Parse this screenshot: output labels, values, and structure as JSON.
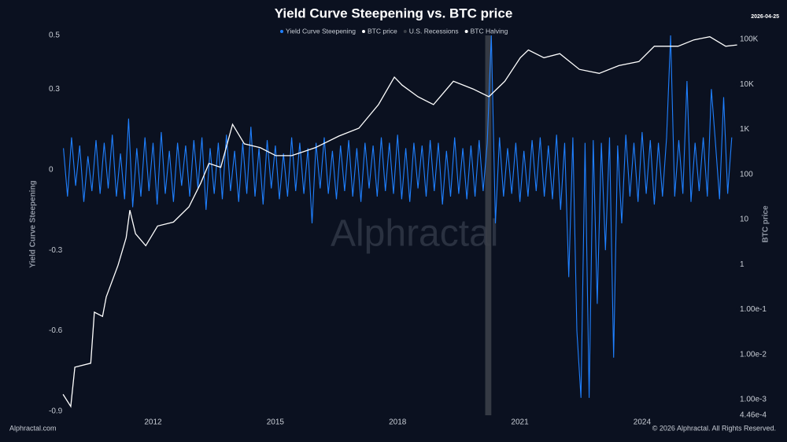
{
  "chart_data": {
    "type": "line",
    "title": "Yield Curve Steepening vs. BTC price",
    "date_stamp": "2026-04-25",
    "watermark": "Alphractal",
    "footer_left": "Alphractal.com",
    "footer_right": "© 2026 Alphractal. All Rights Reserved.",
    "ylabel": "Yield Curve Steepening",
    "y2label": "BTC price",
    "xlim": [
      2009.75,
      2026.3
    ],
    "xticks": [
      2012,
      2015,
      2018,
      2021,
      2024
    ],
    "ylim": [
      -0.9,
      0.5
    ],
    "yticks": [
      -0.9,
      -0.6,
      -0.3,
      0,
      0.3,
      0.5
    ],
    "y2lim": [
      0.000446,
      122000
    ],
    "y2log": true,
    "y2ticks": [
      {
        "value": 0.000446,
        "label": "4.46e-4"
      },
      {
        "value": 0.001,
        "label": "1.00e-3"
      },
      {
        "value": 0.01,
        "label": "1.00e-2"
      },
      {
        "value": 0.1,
        "label": "1.00e-1"
      },
      1,
      10,
      100,
      {
        "value": 1000,
        "label": "1K"
      },
      {
        "value": 10000,
        "label": "10K"
      },
      {
        "value": 100000,
        "label": "100K"
      }
    ],
    "series": [
      {
        "name": "Yield Curve Steepening",
        "color": "#1f80ff",
        "x": [
          2009.8,
          2009.9,
          2010.0,
          2010.1,
          2010.2,
          2010.3,
          2010.4,
          2010.5,
          2010.6,
          2010.7,
          2010.8,
          2010.9,
          2011.0,
          2011.1,
          2011.2,
          2011.3,
          2011.4,
          2011.5,
          2011.6,
          2011.7,
          2011.8,
          2011.9,
          2012.0,
          2012.1,
          2012.2,
          2012.3,
          2012.4,
          2012.5,
          2012.6,
          2012.7,
          2012.8,
          2012.9,
          2013.0,
          2013.1,
          2013.2,
          2013.3,
          2013.4,
          2013.5,
          2013.6,
          2013.7,
          2013.8,
          2013.9,
          2014.0,
          2014.1,
          2014.2,
          2014.3,
          2014.4,
          2014.5,
          2014.6,
          2014.7,
          2014.8,
          2014.9,
          2015.0,
          2015.1,
          2015.2,
          2015.3,
          2015.4,
          2015.5,
          2015.6,
          2015.7,
          2015.8,
          2015.9,
          2016.0,
          2016.1,
          2016.2,
          2016.3,
          2016.4,
          2016.5,
          2016.6,
          2016.7,
          2016.8,
          2016.9,
          2017.0,
          2017.1,
          2017.2,
          2017.3,
          2017.4,
          2017.5,
          2017.6,
          2017.7,
          2017.8,
          2017.9,
          2018.0,
          2018.1,
          2018.2,
          2018.3,
          2018.4,
          2018.5,
          2018.6,
          2018.7,
          2018.8,
          2018.9,
          2019.0,
          2019.1,
          2019.2,
          2019.3,
          2019.4,
          2019.5,
          2019.6,
          2019.7,
          2019.8,
          2019.9,
          2020.0,
          2020.1,
          2020.2,
          2020.3,
          2020.4,
          2020.5,
          2020.6,
          2020.7,
          2020.8,
          2020.9,
          2021.0,
          2021.1,
          2021.2,
          2021.3,
          2021.4,
          2021.5,
          2021.6,
          2021.7,
          2021.8,
          2021.9,
          2022.0,
          2022.1,
          2022.2,
          2022.3,
          2022.4,
          2022.5,
          2022.6,
          2022.7,
          2022.8,
          2022.9,
          2023.0,
          2023.1,
          2023.2,
          2023.3,
          2023.4,
          2023.5,
          2023.6,
          2023.7,
          2023.8,
          2023.9,
          2024.0,
          2024.1,
          2024.2,
          2024.3,
          2024.4,
          2024.5,
          2024.6,
          2024.7,
          2024.8,
          2024.9,
          2025.0,
          2025.1,
          2025.2,
          2025.3,
          2025.4,
          2025.5,
          2025.6,
          2025.7,
          2025.8,
          2025.9,
          2026.0,
          2026.1,
          2026.2
        ],
        "values": [
          0.08,
          -0.1,
          0.12,
          -0.06,
          0.09,
          -0.12,
          0.05,
          -0.08,
          0.11,
          -0.09,
          0.1,
          -0.07,
          0.13,
          -0.1,
          0.06,
          -0.11,
          0.19,
          -0.14,
          0.08,
          -0.1,
          0.12,
          -0.08,
          0.1,
          -0.13,
          0.14,
          -0.09,
          0.07,
          -0.12,
          0.1,
          -0.06,
          0.09,
          -0.1,
          0.11,
          -0.07,
          0.12,
          -0.15,
          0.08,
          -0.09,
          0.1,
          -0.11,
          0.13,
          -0.08,
          0.07,
          -0.12,
          0.1,
          -0.09,
          0.16,
          -0.1,
          0.08,
          -0.13,
          0.11,
          -0.07,
          0.09,
          -0.11,
          0.06,
          -0.1,
          0.12,
          -0.08,
          0.1,
          -0.09,
          0.08,
          -0.2,
          0.1,
          -0.07,
          0.12,
          -0.09,
          0.07,
          -0.11,
          0.09,
          -0.08,
          0.11,
          -0.1,
          0.08,
          -0.12,
          0.1,
          -0.07,
          0.09,
          -0.1,
          0.12,
          -0.08,
          0.1,
          -0.09,
          0.13,
          -0.11,
          0.08,
          -0.12,
          0.1,
          -0.07,
          0.09,
          -0.1,
          0.11,
          -0.08,
          0.1,
          -0.13,
          0.07,
          -0.1,
          0.12,
          -0.09,
          0.08,
          -0.11,
          0.09,
          -0.1,
          0.11,
          -0.08,
          0.1,
          0.5,
          -0.2,
          0.12,
          -0.1,
          0.08,
          -0.09,
          0.1,
          -0.12,
          0.07,
          -0.1,
          0.11,
          -0.08,
          0.12,
          -0.1,
          0.09,
          -0.11,
          0.13,
          -0.15,
          0.1,
          -0.4,
          0.12,
          -0.6,
          -0.85,
          0.1,
          -0.85,
          0.11,
          -0.5,
          0.1,
          -0.3,
          0.12,
          -0.7,
          0.09,
          -0.2,
          0.13,
          -0.1,
          0.1,
          -0.12,
          0.14,
          -0.09,
          0.11,
          -0.13,
          0.1,
          -0.1,
          0.12,
          0.5,
          -0.1,
          0.11,
          -0.09,
          0.33,
          -0.12,
          0.1,
          -0.08,
          0.12,
          -0.1,
          0.3,
          0.1,
          -0.11,
          0.27,
          -0.09,
          0.12
        ]
      },
      {
        "name": "BTC price",
        "color": "#ffffff",
        "axis": "y2",
        "x": [
          2009.79,
          2009.98,
          2010.08,
          2010.47,
          2010.56,
          2010.76,
          2010.85,
          2011.14,
          2011.34,
          2011.43,
          2011.57,
          2011.82,
          2012.11,
          2012.5,
          2012.88,
          2013.17,
          2013.37,
          2013.66,
          2013.95,
          2014.24,
          2014.63,
          2015.01,
          2015.4,
          2015.98,
          2016.56,
          2017.05,
          2017.53,
          2017.92,
          2018.11,
          2018.5,
          2018.88,
          2019.37,
          2019.85,
          2020.24,
          2020.63,
          2021.01,
          2021.21,
          2021.59,
          2021.98,
          2022.46,
          2022.95,
          2023.43,
          2023.92,
          2024.3,
          2024.88,
          2025.27,
          2025.66,
          2026.05,
          2026.33
        ],
        "values": [
          0.0013,
          0.0007,
          0.0052,
          0.0064,
          0.087,
          0.07,
          0.19,
          0.96,
          3.9,
          16,
          4.8,
          2.6,
          7.1,
          8.7,
          19,
          64,
          175,
          143,
          1290,
          476,
          390,
          260,
          260,
          390,
          710,
          1060,
          3540,
          14400,
          9600,
          5300,
          3540,
          11700,
          7900,
          5300,
          11700,
          39000,
          58000,
          39000,
          48000,
          21500,
          17500,
          26000,
          32000,
          70000,
          70000,
          97000,
          114000,
          70000,
          75000
        ]
      },
      {
        "name": "U.S. Recessions",
        "color": "#3a3f48",
        "ranges": [
          [
            2020.15,
            2020.3
          ]
        ]
      },
      {
        "name": "BTC Halving",
        "color": "#ffffff"
      }
    ]
  }
}
